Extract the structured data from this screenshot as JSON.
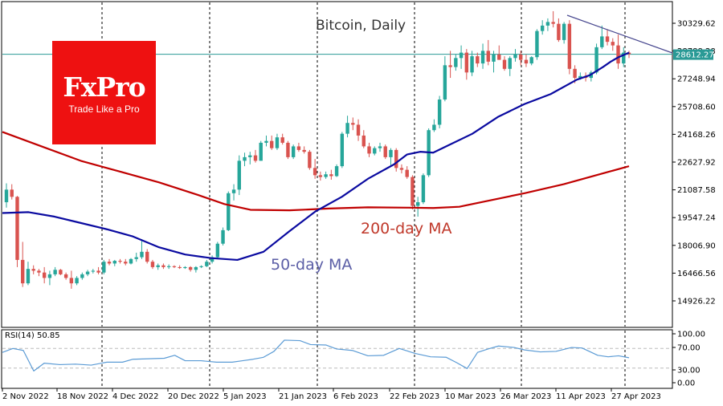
{
  "chart_data": {
    "type": "candlestick",
    "title": "Bitcoin, Daily",
    "symbol": "Bitcoin",
    "timeframe": "Daily",
    "current_price": 28612.27,
    "y_ticks": [
      30329.62,
      27248.94,
      25708.6,
      24168.26,
      22627.92,
      21087.58,
      19547.24,
      18006.9,
      16466.56,
      14926.22
    ],
    "y_tick_hidden": "28788.28",
    "ylim": [
      14200,
      31000
    ],
    "x_ticks": [
      "2 Nov 2022",
      "18 Nov 2022",
      "4 Dec 2022",
      "20 Dec 2022",
      "5 Jan 2023",
      "21 Jan 2023",
      "6 Feb 2023",
      "22 Feb 2023",
      "10 Mar 2023",
      "26 Mar 2023",
      "11 Apr 2023",
      "27 Apr 2023"
    ],
    "grid": "vertical dashed separators",
    "annotations": [
      {
        "text": "200-day MA",
        "color": "#c0392b"
      },
      {
        "text": "50-day MA",
        "color": "#5b5ea6"
      }
    ],
    "series": [
      {
        "name": "50-day MA",
        "color": "#0a0aa0",
        "points": [
          [
            0,
            19800
          ],
          [
            10,
            19850
          ],
          [
            20,
            19600
          ],
          [
            30,
            19250
          ],
          [
            40,
            18900
          ],
          [
            50,
            18500
          ],
          [
            60,
            17900
          ],
          [
            70,
            17500
          ],
          [
            80,
            17300
          ],
          [
            90,
            17200
          ],
          [
            100,
            17650
          ],
          [
            110,
            18800
          ],
          [
            120,
            19900
          ],
          [
            130,
            20700
          ],
          [
            140,
            21700
          ],
          [
            150,
            22500
          ],
          [
            155,
            23050
          ],
          [
            160,
            23200
          ],
          [
            165,
            23150
          ],
          [
            170,
            23500
          ],
          [
            180,
            24200
          ],
          [
            190,
            25150
          ],
          [
            200,
            25850
          ],
          [
            210,
            26400
          ],
          [
            220,
            27200
          ],
          [
            225,
            27450
          ],
          [
            230,
            27900
          ],
          [
            233,
            28200
          ],
          [
            236,
            28450
          ],
          [
            240,
            28700
          ]
        ]
      },
      {
        "name": "200-day MA",
        "color": "#c00000",
        "points": [
          [
            0,
            24300
          ],
          [
            15,
            23500
          ],
          [
            30,
            22700
          ],
          [
            45,
            22100
          ],
          [
            60,
            21500
          ],
          [
            75,
            20800
          ],
          [
            85,
            20300
          ],
          [
            95,
            19980
          ],
          [
            110,
            19950
          ],
          [
            125,
            20050
          ],
          [
            140,
            20120
          ],
          [
            155,
            20100
          ],
          [
            165,
            20080
          ],
          [
            175,
            20150
          ],
          [
            185,
            20450
          ],
          [
            200,
            20900
          ],
          [
            215,
            21400
          ],
          [
            230,
            22000
          ],
          [
            240,
            22400
          ]
        ]
      },
      {
        "name": "Trendline",
        "color": "#4a4a90",
        "points": [
          [
            163,
            30750
          ],
          [
            188,
            29200
          ]
        ]
      },
      {
        "name": "Candles",
        "ohlc_sample": [
          [
            20400,
            21450,
            20100,
            21100
          ],
          [
            21100,
            21400,
            20550,
            20700
          ],
          [
            20700,
            20750,
            16800,
            17200
          ],
          [
            17200,
            18200,
            15700,
            15900
          ],
          [
            15900,
            17100,
            15800,
            16700
          ],
          [
            16700,
            16900,
            16400,
            16600
          ],
          [
            16600,
            16700,
            16300,
            16500
          ],
          [
            16500,
            16800,
            15900,
            16200
          ],
          [
            16200,
            16600,
            15800,
            16400
          ],
          [
            16400,
            16800,
            16300,
            16650
          ],
          [
            16650,
            16700,
            16350,
            16400
          ],
          [
            16400,
            16500,
            16100,
            16200
          ],
          [
            16200,
            16600,
            15600,
            15900
          ],
          [
            15900,
            16300,
            15800,
            16200
          ],
          [
            16200,
            16500,
            16100,
            16400
          ],
          [
            16400,
            16650,
            16300,
            16550
          ],
          [
            16550,
            16700,
            16450,
            16600
          ],
          [
            16600,
            16800,
            16400,
            16500
          ],
          [
            16500,
            17200,
            16400,
            17100
          ],
          [
            17100,
            17250,
            16900,
            17000
          ],
          [
            17000,
            17200,
            16850,
            17150
          ],
          [
            17150,
            17250,
            17000,
            17100
          ],
          [
            17100,
            17250,
            16900,
            17000
          ],
          [
            17000,
            17300,
            16950,
            17250
          ],
          [
            17250,
            17600,
            17100,
            17350
          ],
          [
            17350,
            18350,
            17250,
            17650
          ],
          [
            17650,
            17800,
            17000,
            17100
          ],
          [
            17100,
            17200,
            16700,
            16800
          ],
          [
            16800,
            17000,
            16650,
            16900
          ],
          [
            16900,
            17000,
            16700,
            16800
          ],
          [
            16800,
            16950,
            16700,
            16850
          ],
          [
            16850,
            16900,
            16750,
            16800
          ],
          [
            16800,
            16900,
            16700,
            16750
          ],
          [
            16750,
            16850,
            16700,
            16800
          ],
          [
            16800,
            16850,
            16550,
            16650
          ],
          [
            16650,
            16850,
            16500,
            16800
          ],
          [
            16800,
            16900,
            16750,
            16850
          ],
          [
            16850,
            17200,
            16800,
            17100
          ],
          [
            17100,
            17450,
            17000,
            17350
          ],
          [
            17350,
            18200,
            17300,
            18100
          ],
          [
            18100,
            19000,
            18000,
            18850
          ],
          [
            18850,
            21000,
            18800,
            20900
          ],
          [
            20900,
            21400,
            20500,
            21100
          ],
          [
            21100,
            23000,
            20800,
            22700
          ],
          [
            22700,
            23150,
            22400,
            22900
          ],
          [
            22900,
            23200,
            22500,
            23000
          ],
          [
            23000,
            23300,
            22600,
            22700
          ],
          [
            22700,
            23800,
            22700,
            23700
          ],
          [
            23700,
            24100,
            23500,
            23800
          ],
          [
            23800,
            24100,
            23300,
            23400
          ],
          [
            23400,
            24200,
            23300,
            24000
          ],
          [
            24000,
            24200,
            23600,
            23700
          ],
          [
            23700,
            23800,
            22800,
            22900
          ],
          [
            22900,
            23600,
            22800,
            23500
          ],
          [
            23500,
            23700,
            23200,
            23300
          ],
          [
            23300,
            23500,
            23100,
            23200
          ],
          [
            23200,
            23300,
            22200,
            22300
          ],
          [
            22300,
            22800,
            21700,
            21900
          ],
          [
            21900,
            22100,
            21600,
            21800
          ],
          [
            21800,
            22100,
            21700,
            21950
          ],
          [
            21950,
            22200,
            21650,
            21850
          ],
          [
            21850,
            22500,
            21800,
            22400
          ],
          [
            22400,
            24300,
            22300,
            24200
          ],
          [
            24200,
            25200,
            24000,
            24800
          ],
          [
            24800,
            25100,
            24400,
            24700
          ],
          [
            24700,
            25000,
            23800,
            24100
          ],
          [
            24100,
            24400,
            23400,
            23500
          ],
          [
            23500,
            23700,
            22900,
            23100
          ],
          [
            23100,
            23500,
            23000,
            23400
          ],
          [
            23400,
            23700,
            23200,
            23500
          ],
          [
            23500,
            23600,
            22800,
            22900
          ],
          [
            22900,
            23400,
            22400,
            23300
          ],
          [
            23300,
            23400,
            22100,
            22300
          ],
          [
            22300,
            22500,
            22000,
            22200
          ],
          [
            22200,
            22400,
            21700,
            21800
          ],
          [
            21800,
            21900,
            20000,
            20200
          ],
          [
            20200,
            20700,
            19600,
            20400
          ],
          [
            20400,
            22000,
            20300,
            21900
          ],
          [
            21900,
            24500,
            21800,
            24400
          ],
          [
            24400,
            25000,
            24300,
            24700
          ],
          [
            24700,
            26300,
            24500,
            26100
          ],
          [
            26100,
            28500,
            26000,
            28000
          ],
          [
            28000,
            28800,
            27300,
            27900
          ],
          [
            27900,
            28600,
            27700,
            28400
          ],
          [
            28400,
            29100,
            27800,
            28700
          ],
          [
            28700,
            28900,
            27200,
            27600
          ],
          [
            27600,
            28800,
            27400,
            28500
          ],
          [
            28500,
            28700,
            27900,
            28100
          ],
          [
            28100,
            29200,
            27800,
            28800
          ],
          [
            28800,
            29400,
            28000,
            28200
          ],
          [
            28200,
            28800,
            27600,
            28600
          ],
          [
            28600,
            29100,
            28300,
            28300
          ],
          [
            28300,
            28500,
            27700,
            27800
          ],
          [
            27800,
            28500,
            27400,
            28400
          ],
          [
            28400,
            28900,
            28200,
            28600
          ],
          [
            28600,
            28800,
            28000,
            28300
          ],
          [
            28300,
            28600,
            27900,
            28100
          ],
          [
            28100,
            28500,
            28000,
            28450
          ],
          [
            28450,
            30000,
            28300,
            29900
          ],
          [
            29900,
            30500,
            29700,
            30200
          ],
          [
            30200,
            30600,
            29900,
            30400
          ],
          [
            30400,
            31000,
            30100,
            30300
          ],
          [
            30300,
            30600,
            29300,
            29400
          ],
          [
            29400,
            30400,
            29200,
            30300
          ],
          [
            30300,
            30500,
            27500,
            27800
          ],
          [
            27800,
            28000,
            27000,
            27300
          ],
          [
            27300,
            27600,
            27200,
            27400
          ],
          [
            27400,
            27600,
            27100,
            27300
          ],
          [
            27300,
            27700,
            27100,
            27600
          ],
          [
            27600,
            29200,
            27500,
            29000
          ],
          [
            29000,
            30200,
            28900,
            29600
          ],
          [
            29600,
            30000,
            29100,
            29300
          ],
          [
            29300,
            29500,
            28800,
            29100
          ],
          [
            29100,
            29700,
            27800,
            28100
          ],
          [
            28100,
            29000,
            27900,
            28700
          ],
          [
            28700,
            28800,
            28400,
            28612
          ]
        ]
      }
    ],
    "rsi": {
      "label": "RSI(14) 50.85",
      "period": 14,
      "value": 50.85,
      "levels": [
        70,
        30
      ],
      "y_ticks": [
        "100.00",
        "70.00",
        "30.00",
        "0.00"
      ],
      "points": [
        [
          0,
          62
        ],
        [
          4,
          70
        ],
        [
          8,
          66
        ],
        [
          12,
          24
        ],
        [
          16,
          40
        ],
        [
          22,
          37
        ],
        [
          28,
          38
        ],
        [
          34,
          36
        ],
        [
          40,
          42
        ],
        [
          46,
          42
        ],
        [
          50,
          48
        ],
        [
          56,
          49
        ],
        [
          62,
          50
        ],
        [
          66,
          56
        ],
        [
          70,
          45
        ],
        [
          76,
          45
        ],
        [
          82,
          42
        ],
        [
          88,
          42
        ],
        [
          92,
          45
        ],
        [
          96,
          48
        ],
        [
          100,
          52
        ],
        [
          104,
          64
        ],
        [
          108,
          87
        ],
        [
          114,
          86
        ],
        [
          118,
          78
        ],
        [
          124,
          77
        ],
        [
          128,
          69
        ],
        [
          134,
          66
        ],
        [
          140,
          55
        ],
        [
          146,
          56
        ],
        [
          152,
          70
        ],
        [
          158,
          60
        ],
        [
          164,
          53
        ],
        [
          170,
          52
        ],
        [
          174,
          41
        ],
        [
          178,
          29
        ],
        [
          182,
          62
        ],
        [
          186,
          69
        ],
        [
          190,
          75
        ],
        [
          196,
          72
        ],
        [
          200,
          67
        ],
        [
          206,
          63
        ],
        [
          212,
          64
        ],
        [
          218,
          72
        ],
        [
          222,
          71
        ],
        [
          228,
          56
        ],
        [
          232,
          53
        ],
        [
          236,
          55
        ],
        [
          240,
          51
        ]
      ]
    }
  },
  "labels": {
    "title": "Bitcoin, Daily",
    "ma200": "200-day MA",
    "ma50": "50-day MA",
    "price_tag": "28612.27",
    "rsi": "RSI(14) 50.85"
  },
  "logo": {
    "brand": "FxPro",
    "tagline": "Trade Like a Pro",
    "color": "#ee1111"
  },
  "colors": {
    "bull": "#26a69a",
    "bear": "#d9534f",
    "price_line": "#2a9a96",
    "ma50": "#0a0aa0",
    "ma200": "#c00000",
    "trendline": "#4a4a90",
    "rsi_line": "#5b9bd5"
  }
}
